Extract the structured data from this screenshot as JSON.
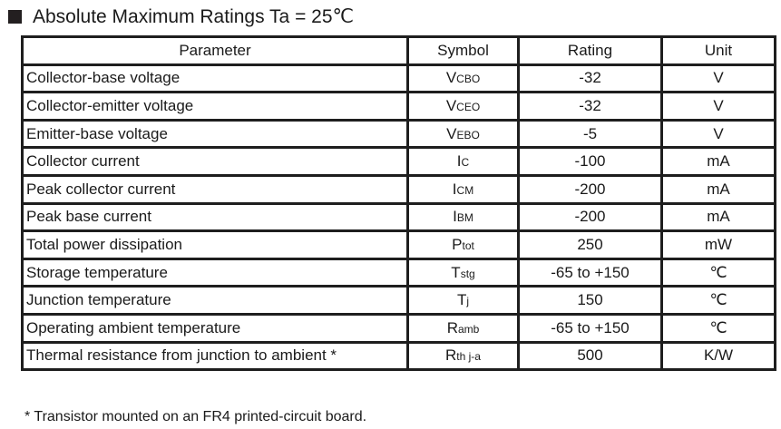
{
  "title": "Absolute Maximum Ratings Ta = 25℃",
  "headers": [
    "Parameter",
    "Symbol",
    "Rating",
    "Unit"
  ],
  "rows": [
    {
      "parameter": "Collector-base voltage",
      "symbol": "V",
      "sub": "CBO",
      "rating": "-32",
      "unit": "V"
    },
    {
      "parameter": "Collector-emitter voltage",
      "symbol": "V",
      "sub": "CEO",
      "rating": "-32",
      "unit": "V"
    },
    {
      "parameter": "Emitter-base voltage",
      "symbol": "V",
      "sub": "EBO",
      "rating": "-5",
      "unit": "V"
    },
    {
      "parameter": "Collector current",
      "symbol": "I",
      "sub": "C",
      "rating": "-100",
      "unit": "mA"
    },
    {
      "parameter": "Peak collector current",
      "symbol": "I",
      "sub": "CM",
      "rating": "-200",
      "unit": "mA"
    },
    {
      "parameter": "Peak base current",
      "symbol": "I",
      "sub": "BM",
      "rating": "-200",
      "unit": "mA"
    },
    {
      "parameter": "Total power dissipation",
      "symbol": "P",
      "sub": "tot",
      "rating": "250",
      "unit": "mW"
    },
    {
      "parameter": "Storage temperature",
      "symbol": "T",
      "sub": "stg",
      "rating": "-65 to +150",
      "unit": "℃"
    },
    {
      "parameter": "Junction temperature",
      "symbol": "T",
      "sub": "j",
      "rating": "150",
      "unit": "℃"
    },
    {
      "parameter": "Operating ambient temperature",
      "symbol": "R",
      "sub": "amb",
      "rating": "-65 to +150",
      "unit": "℃"
    },
    {
      "parameter": "Thermal resistance from junction to ambient  *",
      "symbol": "R",
      "sub": "th j-a",
      "rating": "500",
      "unit": "K/W"
    }
  ],
  "footnote": "* Transistor mounted on an FR4 printed-circuit board."
}
